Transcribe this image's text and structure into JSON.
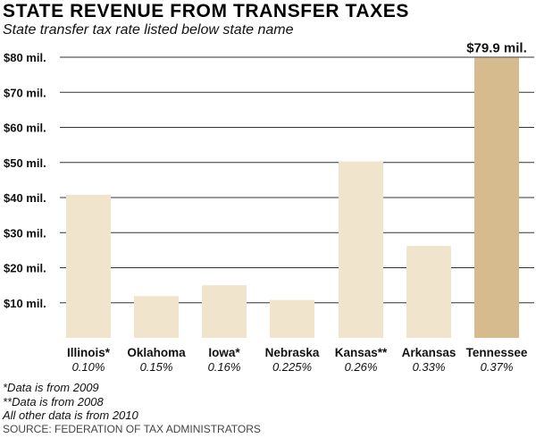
{
  "header": {
    "title": "STATE REVENUE FROM TRANSFER TAXES",
    "subtitle": "State transfer tax rate listed below state name"
  },
  "chart_data": {
    "type": "bar",
    "title": "STATE REVENUE FROM TRANSFER TAXES",
    "subtitle": "State transfer tax rate listed below state name",
    "categories": [
      "Illinois*",
      "Oklahoma",
      "Iowa*",
      "Nebraska",
      "Kansas**",
      "Arkansas",
      "Tennessee"
    ],
    "rates": [
      "0.10%",
      "0.15%",
      "0.16%",
      "0.225%",
      "0.26%",
      "0.33%",
      "0.37%"
    ],
    "values": [
      40.8,
      11.9,
      15.0,
      10.8,
      50.3,
      26.2,
      79.9
    ],
    "unit": "$ millions",
    "yticks": [
      {
        "value": 10,
        "label": "$10 mil."
      },
      {
        "value": 20,
        "label": "$20 mil."
      },
      {
        "value": 30,
        "label": "$30 mil."
      },
      {
        "value": 40,
        "label": "$40 mil."
      },
      {
        "value": 50,
        "label": "$50 mil."
      },
      {
        "value": 60,
        "label": "$60 mil."
      },
      {
        "value": 70,
        "label": "$70 mil."
      },
      {
        "value": 80,
        "label": "$80 mil."
      }
    ],
    "ylim": [
      0,
      80
    ],
    "grid": true,
    "legend": "none",
    "annotations": [
      {
        "category": "Tennessee",
        "text": "$79.9 mil."
      }
    ],
    "colors": {
      "bar": "#f1e4cc",
      "highlight": "#d6bb8e",
      "grid": "#333333",
      "highlight_category": "Tennessee"
    }
  },
  "footer": {
    "notes": [
      "*Data is from 2009",
      "**Data is from 2008",
      "All other data is from 2010"
    ],
    "source": "SOURCE: FEDERATION OF TAX ADMINISTRATORS"
  }
}
